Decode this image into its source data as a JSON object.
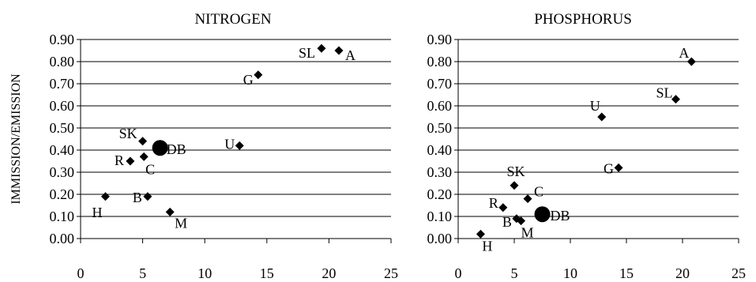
{
  "chart_data": [
    {
      "type": "scatter",
      "title": "NITROGEN",
      "xlabel": "",
      "ylabel": "IMMISSION/EMISSION",
      "xlim": [
        0,
        25
      ],
      "ylim": [
        0,
        0.9
      ],
      "x_ticks": [
        "0",
        "5",
        "10",
        "15",
        "20",
        "25"
      ],
      "y_ticks": [
        "0.00",
        "0.10",
        "0.20",
        "0.30",
        "0.40",
        "0.50",
        "0.60",
        "0.70",
        "0.80",
        "0.90"
      ],
      "grid": "horizontal",
      "points": [
        {
          "label": "A",
          "x": 20.8,
          "y": 0.85,
          "marker": "diamond"
        },
        {
          "label": "SL",
          "x": 19.4,
          "y": 0.86,
          "marker": "diamond"
        },
        {
          "label": "G",
          "x": 14.3,
          "y": 0.74,
          "marker": "diamond"
        },
        {
          "label": "U",
          "x": 12.8,
          "y": 0.42,
          "marker": "diamond"
        },
        {
          "label": "SK",
          "x": 5.0,
          "y": 0.44,
          "marker": "diamond"
        },
        {
          "label": "DB",
          "x": 6.4,
          "y": 0.41,
          "marker": "circle"
        },
        {
          "label": "C",
          "x": 5.1,
          "y": 0.37,
          "marker": "diamond"
        },
        {
          "label": "R",
          "x": 4.0,
          "y": 0.35,
          "marker": "diamond"
        },
        {
          "label": "B",
          "x": 5.4,
          "y": 0.19,
          "marker": "diamond"
        },
        {
          "label": "H",
          "x": 2.0,
          "y": 0.19,
          "marker": "diamond"
        },
        {
          "label": "M",
          "x": 7.2,
          "y": 0.12,
          "marker": "diamond"
        }
      ]
    },
    {
      "type": "scatter",
      "title": "PHOSPHORUS",
      "xlabel": "",
      "ylabel": "",
      "xlim": [
        0,
        25
      ],
      "ylim": [
        0,
        0.9
      ],
      "x_ticks": [
        "0",
        "5",
        "10",
        "15",
        "20",
        "25"
      ],
      "y_ticks": [
        "0.00",
        "0.10",
        "0.20",
        "0.30",
        "0.40",
        "0.50",
        "0.60",
        "0.70",
        "0.80",
        "0.90"
      ],
      "grid": "horizontal",
      "points": [
        {
          "label": "A",
          "x": 20.8,
          "y": 0.8,
          "marker": "diamond"
        },
        {
          "label": "SL",
          "x": 19.4,
          "y": 0.63,
          "marker": "diamond"
        },
        {
          "label": "U",
          "x": 12.8,
          "y": 0.55,
          "marker": "diamond"
        },
        {
          "label": "G",
          "x": 14.3,
          "y": 0.32,
          "marker": "diamond"
        },
        {
          "label": "SK",
          "x": 5.0,
          "y": 0.24,
          "marker": "diamond"
        },
        {
          "label": "C",
          "x": 6.2,
          "y": 0.18,
          "marker": "diamond"
        },
        {
          "label": "R",
          "x": 4.0,
          "y": 0.14,
          "marker": "diamond"
        },
        {
          "label": "DB",
          "x": 7.5,
          "y": 0.11,
          "marker": "circle"
        },
        {
          "label": "B",
          "x": 5.2,
          "y": 0.09,
          "marker": "diamond"
        },
        {
          "label": "M",
          "x": 5.6,
          "y": 0.08,
          "marker": "diamond"
        },
        {
          "label": "H",
          "x": 2.0,
          "y": 0.02,
          "marker": "diamond"
        }
      ]
    }
  ]
}
